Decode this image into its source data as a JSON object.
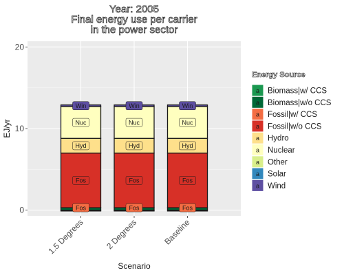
{
  "chart_data": {
    "type": "bar",
    "stacked": true,
    "title_lines": [
      "Year: 2005",
      "Final energy use per carrier",
      "in the power sector"
    ],
    "xlabel": "Scenario",
    "ylabel": "EJ/yr",
    "ylim": [
      -0.7,
      20.7
    ],
    "yticks": [
      0,
      10,
      20
    ],
    "categories": [
      "1.5 Degrees",
      "2 Degrees",
      "Baseline"
    ],
    "grid": true,
    "legend_title": "Energy Source",
    "legend_position": "right",
    "series": [
      {
        "name": "Biomass|w/ CCS",
        "color": "#1a9850",
        "values": [
          -0.1,
          -0.1,
          -0.1
        ],
        "label": ""
      },
      {
        "name": "Biomass|w/o CCS",
        "color": "#006837",
        "values": [
          0.3,
          0.3,
          0.3
        ],
        "label": ""
      },
      {
        "name": "Fossil|w/ CCS",
        "color": "#f46d43",
        "values": [
          0.0,
          0.0,
          0.0
        ],
        "label": "Fos"
      },
      {
        "name": "Fossil|w/o CCS",
        "color": "#d73027",
        "values": [
          6.7,
          6.7,
          6.7
        ],
        "label": "Fos"
      },
      {
        "name": "Hydro",
        "color": "#fee08b",
        "values": [
          1.8,
          1.8,
          1.8
        ],
        "label": "Hyd"
      },
      {
        "name": "Nuclear",
        "color": "#ffffbf",
        "values": [
          3.9,
          3.9,
          3.9
        ],
        "label": "Nuc"
      },
      {
        "name": "Other",
        "color": "#d9ef8b",
        "values": [
          0.0,
          0.0,
          0.0
        ],
        "label": ""
      },
      {
        "name": "Solar",
        "color": "#3288bd",
        "values": [
          0.0,
          0.0,
          0.0
        ],
        "label": ""
      },
      {
        "name": "Wind",
        "color": "#5e4fa2",
        "values": [
          0.2,
          0.2,
          0.2
        ],
        "label": "Win"
      }
    ],
    "legend_key_glyph": "a"
  }
}
